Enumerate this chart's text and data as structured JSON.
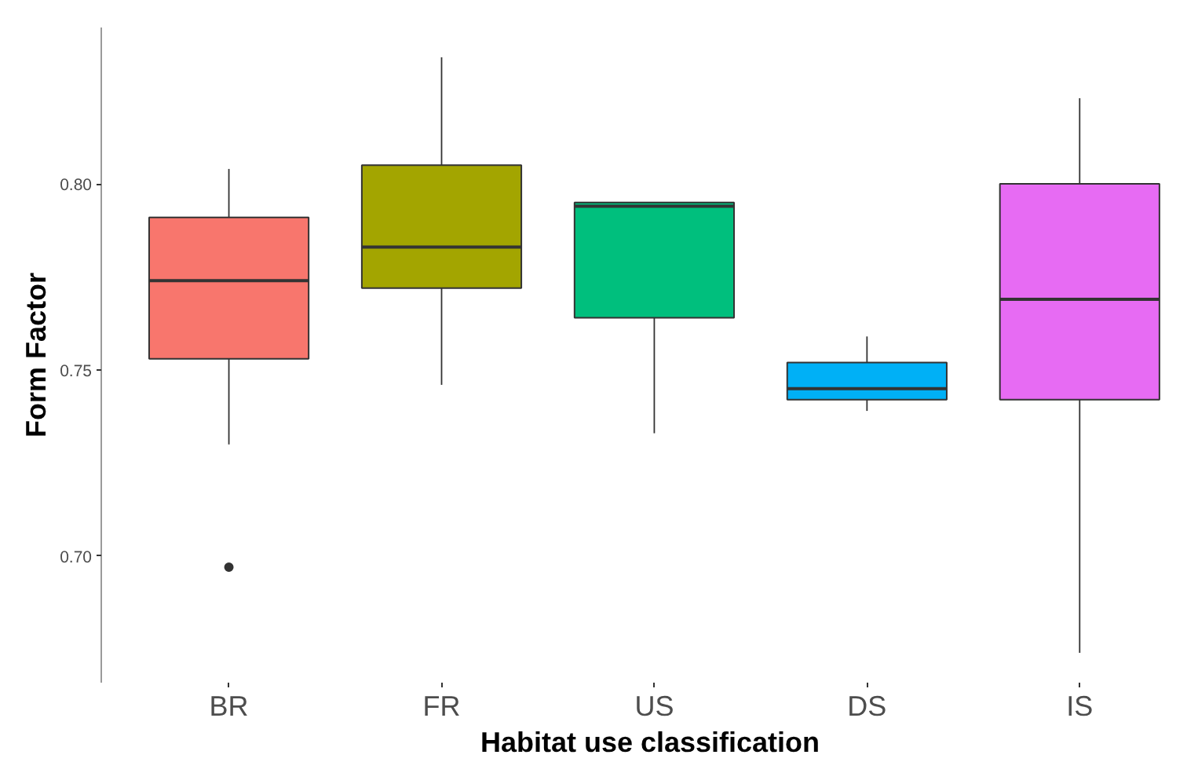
{
  "chart_data": {
    "type": "box",
    "xlabel": "Habitat use classification",
    "ylabel": "Form Factor",
    "categories": [
      "BR",
      "FR",
      "US",
      "DS",
      "IS"
    ],
    "colors": [
      "#f8766d",
      "#a3a500",
      "#00bf7d",
      "#00b0f6",
      "#e76bf3"
    ],
    "boxes": [
      {
        "low": 0.73,
        "q1": 0.753,
        "median": 0.774,
        "q3": 0.791,
        "high": 0.804,
        "outliers": [
          0.697
        ]
      },
      {
        "low": 0.746,
        "q1": 0.772,
        "median": 0.783,
        "q3": 0.805,
        "high": 0.834
      },
      {
        "low": 0.733,
        "q1": 0.764,
        "median": 0.794,
        "q3": 0.795,
        "high": 0.795
      },
      {
        "low": 0.739,
        "q1": 0.742,
        "median": 0.745,
        "q3": 0.752,
        "high": 0.759
      },
      {
        "low": 0.674,
        "q1": 0.742,
        "median": 0.769,
        "q3": 0.8,
        "high": 0.823
      }
    ],
    "ylim": [
      0.666,
      0.842
    ],
    "yticks": [
      {
        "value": 0.7,
        "label": "0.70"
      },
      0.75,
      {
        "value": 0.8,
        "label": "0.80"
      }
    ]
  }
}
